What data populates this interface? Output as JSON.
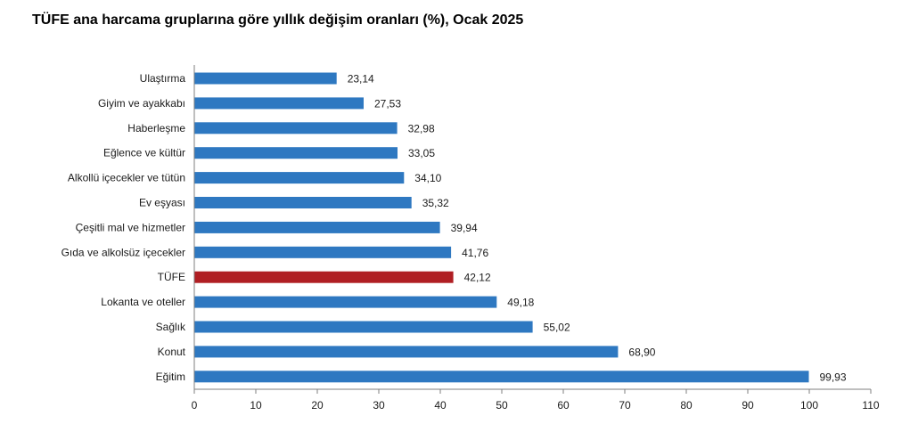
{
  "chart_data": {
    "type": "bar",
    "orientation": "horizontal",
    "title": "TÜFE ana harcama gruplarına göre yıllık değişim oranları (%), Ocak 2025",
    "categories": [
      "Ulaştırma",
      "Giyim ve ayakkabı",
      "Haberleşme",
      "Eğlence ve kültür",
      "Alkollü içecekler ve tütün",
      "Ev eşyası",
      "Çeşitli mal ve hizmetler",
      "Gıda ve alkolsüz içecekler",
      "TÜFE",
      "Lokanta ve oteller",
      "Sağlık",
      "Konut",
      "Eğitim"
    ],
    "values": [
      23.14,
      27.53,
      32.98,
      33.05,
      34.1,
      35.32,
      39.94,
      41.76,
      42.12,
      49.18,
      55.02,
      68.9,
      99.93
    ],
    "value_labels": [
      "23,14",
      "27,53",
      "32,98",
      "33,05",
      "34,10",
      "35,32",
      "39,94",
      "41,76",
      "42,12",
      "49,18",
      "55,02",
      "68,90",
      "99,93"
    ],
    "highlight_category": "TÜFE",
    "xlim": [
      0,
      110
    ],
    "xticks": [
      0,
      10,
      20,
      30,
      40,
      50,
      60,
      70,
      80,
      90,
      100,
      110
    ],
    "grid": false,
    "legend": "none",
    "colors": {
      "bar": "#2E78C1",
      "highlight": "#B01E23",
      "axis": "#7f7f7f"
    }
  }
}
